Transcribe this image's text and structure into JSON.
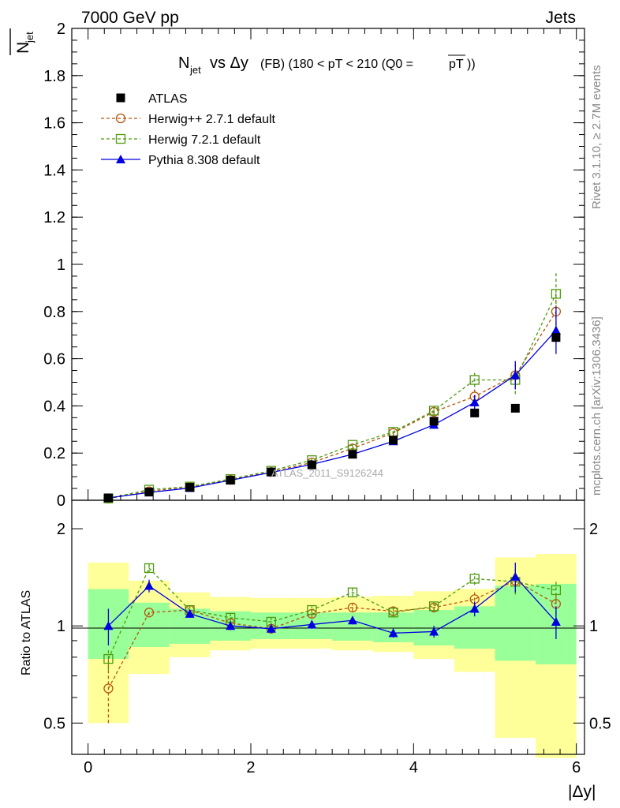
{
  "header": {
    "left": "7000 GeV pp",
    "right": "Jets"
  },
  "side_labels": {
    "rivet": "Rivet 3.1.10, ≥ 2.7M events",
    "mcplots": "mcplots.cern.ch [arXiv:1306.3436]"
  },
  "watermark": "ATLAS_2011_S9126244",
  "colors": {
    "atlas": "#000000",
    "herwigpp": "#b5560f",
    "herwig7": "#4f9a0f",
    "pythia": "#0000e0",
    "band_green": "#99ff99",
    "band_yellow": "#ffff99"
  },
  "chart_data": [
    {
      "type": "scatter",
      "title": "N_jet vs Δy (FB) (180 < pT < 210 (Q0 = pT))",
      "ylabel": "N_jet (bar)",
      "xlabel": "|Δy|",
      "xlim": [
        -0.2,
        6.1
      ],
      "ylim": [
        0,
        2
      ],
      "ytick_labels": [
        "0",
        "0.2",
        "0.4",
        "0.6",
        "0.8",
        "1",
        "1.2",
        "1.4",
        "1.6",
        "1.8",
        "2"
      ],
      "yticks": [
        0,
        0.2,
        0.4,
        0.6,
        0.8,
        1,
        1.2,
        1.4,
        1.6,
        1.8,
        2
      ],
      "legend_position": "top-left",
      "x": [
        0.25,
        0.75,
        1.25,
        1.75,
        2.25,
        2.75,
        3.25,
        3.75,
        4.25,
        4.75,
        5.25,
        5.75
      ],
      "series": [
        {
          "name": "ATLAS",
          "marker": "square-filled",
          "values": [
            0.01,
            0.035,
            0.055,
            0.085,
            0.12,
            0.15,
            0.195,
            0.255,
            0.335,
            0.37,
            0.39,
            0.69
          ]
        },
        {
          "name": "Herwig++ 2.7.1 default",
          "marker": "circle-open",
          "line": "dashed",
          "values": [
            0.007,
            0.038,
            0.057,
            0.087,
            0.12,
            0.16,
            0.22,
            0.285,
            0.375,
            0.44,
            0.53,
            0.8
          ],
          "errors": [
            0.003,
            0.004,
            0.004,
            0.005,
            0.006,
            0.008,
            0.01,
            0.012,
            0.014,
            0.03,
            0.06,
            0.08
          ]
        },
        {
          "name": "Herwig 7.2.1 default",
          "marker": "square-open",
          "line": "dashed",
          "values": [
            0.008,
            0.045,
            0.058,
            0.09,
            0.125,
            0.17,
            0.235,
            0.29,
            0.38,
            0.51,
            0.51,
            0.875
          ],
          "errors": [
            0.003,
            0.005,
            0.005,
            0.005,
            0.006,
            0.008,
            0.01,
            0.012,
            0.015,
            0.03,
            0.06,
            0.09
          ]
        },
        {
          "name": "Pythia 8.308 default",
          "marker": "triangle-filled",
          "line": "solid",
          "values": [
            0.01,
            0.033,
            0.052,
            0.085,
            0.118,
            0.152,
            0.195,
            0.25,
            0.32,
            0.415,
            0.53,
            0.72
          ],
          "errors": [
            0.002,
            0.003,
            0.004,
            0.005,
            0.006,
            0.007,
            0.008,
            0.01,
            0.013,
            0.03,
            0.06,
            0.1
          ]
        }
      ]
    },
    {
      "type": "scatter",
      "title": "",
      "ylabel": "Ratio to ATLAS",
      "xlabel": "|Δy|",
      "xlim": [
        -0.2,
        6.1
      ],
      "ylim_log": [
        0.4,
        2.45
      ],
      "yticks": [
        0.5,
        1,
        2
      ],
      "ytick_labels": [
        "0.5",
        "1",
        "2"
      ],
      "xticks": [
        0,
        2,
        4,
        6
      ],
      "xtick_labels": [
        "0",
        "2",
        "4",
        "6"
      ],
      "x": [
        0.25,
        0.75,
        1.25,
        1.75,
        2.25,
        2.75,
        3.25,
        3.75,
        4.25,
        4.75,
        5.25,
        5.75
      ],
      "bands": {
        "edges": [
          0,
          0.5,
          1.0,
          1.5,
          2.0,
          2.5,
          3.0,
          3.5,
          4.0,
          4.5,
          5.0,
          5.5,
          6.0
        ],
        "green_low": [
          0.79,
          0.86,
          0.88,
          0.9,
          0.91,
          0.91,
          0.9,
          0.89,
          0.87,
          0.85,
          0.78,
          0.76
        ],
        "green_high": [
          1.3,
          1.18,
          1.13,
          1.11,
          1.1,
          1.1,
          1.1,
          1.1,
          1.12,
          1.15,
          1.33,
          1.35
        ],
        "yellow_low": [
          0.5,
          0.71,
          0.8,
          0.84,
          0.85,
          0.85,
          0.84,
          0.83,
          0.79,
          0.72,
          0.45,
          0.39
        ],
        "yellow_high": [
          1.57,
          1.38,
          1.27,
          1.23,
          1.22,
          1.22,
          1.23,
          1.24,
          1.28,
          1.3,
          1.63,
          1.67
        ]
      },
      "series": [
        {
          "name": "Herwig++ 2.7.1 default",
          "values": [
            0.64,
            1.1,
            1.12,
            1.02,
            0.98,
            1.09,
            1.14,
            1.11,
            1.14,
            1.21,
            1.38,
            1.17
          ],
          "err_low": [
            0.14,
            0.02,
            0.03,
            0.03,
            0.03,
            0.03,
            0.03,
            0.03,
            0.03,
            0.06,
            0.12,
            0.09
          ],
          "err_high": [
            0.15,
            0.02,
            0.03,
            0.03,
            0.03,
            0.03,
            0.03,
            0.03,
            0.03,
            0.06,
            0.12,
            0.09
          ]
        },
        {
          "name": "Herwig 7.2.1 default",
          "values": [
            0.79,
            1.51,
            1.12,
            1.06,
            1.03,
            1.12,
            1.27,
            1.1,
            1.15,
            1.4,
            1.37,
            1.29
          ],
          "err_low": [
            0.06,
            0.05,
            0.03,
            0.03,
            0.03,
            0.03,
            0.04,
            0.03,
            0.04,
            0.06,
            0.12,
            0.1
          ],
          "err_high": [
            0.06,
            0.05,
            0.03,
            0.03,
            0.03,
            0.03,
            0.04,
            0.03,
            0.04,
            0.06,
            0.12,
            0.1
          ]
        },
        {
          "name": "Pythia 8.308 default",
          "values": [
            1.0,
            1.33,
            1.09,
            1.0,
            0.98,
            1.01,
            1.04,
            0.95,
            0.96,
            1.13,
            1.42,
            1.03
          ],
          "err_low": [
            0.13,
            0.06,
            0.03,
            0.03,
            0.03,
            0.03,
            0.03,
            0.03,
            0.04,
            0.06,
            0.15,
            0.12
          ],
          "err_high": [
            0.13,
            0.06,
            0.03,
            0.03,
            0.03,
            0.03,
            0.03,
            0.03,
            0.04,
            0.06,
            0.15,
            0.12
          ]
        }
      ]
    }
  ]
}
